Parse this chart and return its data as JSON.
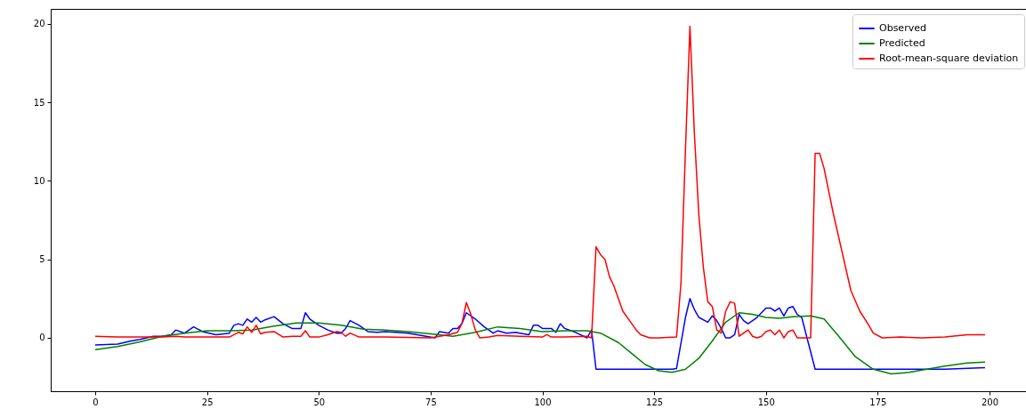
{
  "chart_data": {
    "type": "line",
    "xlim": [
      -9.95,
      208.95
    ],
    "ylim": [
      -3.4,
      20.96
    ],
    "xticks": [
      0,
      25,
      50,
      75,
      100,
      125,
      150,
      175,
      200
    ],
    "yticks": [
      0,
      5,
      10,
      15,
      20
    ],
    "grid": false,
    "legend": "top right",
    "line_style": "solid",
    "series": [
      {
        "name": "Observed",
        "color": "#0000ff",
        "x": [
          0,
          5,
          8,
          10,
          13,
          15,
          17,
          18,
          20,
          22,
          24,
          27,
          30,
          31,
          32,
          33,
          34,
          35,
          36,
          37,
          38,
          40,
          42,
          44,
          46,
          47,
          48,
          50,
          52,
          54,
          55,
          56,
          57,
          59,
          61,
          63,
          65,
          70,
          74,
          76,
          77,
          79,
          80,
          81,
          82,
          83,
          85,
          87,
          89,
          90,
          92,
          94,
          95,
          97,
          98,
          99,
          100,
          102,
          103,
          104,
          105,
          107,
          110,
          111,
          112,
          115,
          120,
          125,
          129,
          130,
          132,
          133,
          134,
          135,
          137,
          138,
          139,
          140,
          141,
          142,
          143,
          144,
          145,
          146,
          148,
          150,
          151,
          152,
          153,
          154,
          155,
          156,
          157,
          158,
          161,
          165,
          170,
          180,
          190,
          199
        ],
        "values": [
          -0.45,
          -0.4,
          -0.2,
          -0.1,
          0.1,
          0.1,
          0.2,
          0.5,
          0.3,
          0.7,
          0.4,
          0.2,
          0.3,
          0.8,
          0.9,
          0.8,
          1.2,
          1.0,
          1.3,
          1.0,
          1.15,
          1.35,
          0.9,
          0.6,
          0.6,
          1.6,
          1.2,
          0.8,
          0.5,
          0.3,
          0.3,
          0.6,
          1.1,
          0.8,
          0.4,
          0.35,
          0.4,
          0.3,
          0.1,
          0.0,
          0.4,
          0.3,
          0.6,
          0.6,
          0.9,
          1.6,
          1.2,
          0.7,
          0.3,
          0.45,
          0.3,
          0.35,
          0.3,
          0.2,
          0.8,
          0.8,
          0.6,
          0.6,
          0.35,
          0.9,
          0.6,
          0.4,
          0.0,
          0.5,
          -2.0,
          -2.0,
          -2.0,
          -2.0,
          -2.0,
          -1.95,
          1.3,
          2.5,
          1.8,
          1.3,
          1.0,
          1.4,
          1.1,
          0.6,
          0.0,
          0.0,
          0.2,
          1.5,
          1.1,
          0.9,
          1.3,
          1.9,
          1.9,
          1.7,
          1.9,
          1.4,
          1.9,
          2.0,
          1.5,
          1.3,
          -2.0,
          -2.0,
          -2.0,
          -2.0,
          -2.0,
          -1.9
        ]
      },
      {
        "name": "Predicted",
        "color": "#008000",
        "x": [
          0,
          5,
          10,
          15,
          20,
          25,
          30,
          35,
          40,
          45,
          50,
          55,
          60,
          65,
          70,
          75,
          80,
          85,
          90,
          95,
          100,
          105,
          110,
          113,
          117,
          120,
          123,
          126,
          129,
          132,
          135,
          138,
          141,
          144,
          147,
          150,
          153,
          156,
          160,
          163,
          166,
          170,
          174,
          178,
          182,
          186,
          190,
          195,
          199
        ],
        "values": [
          -0.75,
          -0.55,
          -0.25,
          0.1,
          0.3,
          0.45,
          0.45,
          0.5,
          0.75,
          0.95,
          0.95,
          0.8,
          0.55,
          0.5,
          0.4,
          0.25,
          0.1,
          0.35,
          0.7,
          0.6,
          0.4,
          0.45,
          0.45,
          0.3,
          -0.3,
          -1.0,
          -1.7,
          -2.1,
          -2.2,
          -2.0,
          -1.3,
          -0.2,
          1.0,
          1.6,
          1.5,
          1.3,
          1.25,
          1.35,
          1.4,
          1.2,
          0.2,
          -1.2,
          -2.0,
          -2.3,
          -2.2,
          -2.0,
          -1.8,
          -1.6,
          -1.55
        ]
      },
      {
        "name": "Root-mean-square deviation",
        "color": "#ff0000",
        "x": [
          0,
          5,
          10,
          15,
          18,
          20,
          25,
          30,
          32,
          33,
          34,
          35,
          36,
          37,
          38,
          40,
          42,
          44,
          46,
          47,
          48,
          50,
          52,
          54,
          55,
          56,
          57,
          59,
          65,
          75,
          79,
          81,
          82,
          83,
          84,
          85,
          86,
          88,
          90,
          95,
          100,
          101,
          102,
          105,
          110,
          111,
          112,
          113,
          114,
          115,
          116,
          118,
          120,
          121,
          122,
          124,
          126,
          130,
          131,
          132,
          133,
          134,
          135,
          136,
          137,
          138,
          139,
          140,
          141,
          142,
          143,
          144,
          145,
          146,
          147,
          148,
          149,
          150,
          151,
          152,
          153,
          154,
          155,
          156,
          157,
          160,
          161,
          162,
          163,
          165,
          167,
          169,
          171,
          173,
          174,
          176,
          180,
          185,
          190,
          195,
          199
        ],
        "values": [
          0.1,
          0.05,
          0.05,
          0.05,
          0.1,
          0.05,
          0.05,
          0.05,
          0.35,
          0.25,
          0.7,
          0.35,
          0.8,
          0.25,
          0.35,
          0.4,
          0.05,
          0.1,
          0.1,
          0.45,
          0.05,
          0.05,
          0.2,
          0.4,
          0.35,
          0.1,
          0.3,
          0.05,
          0.05,
          0.0,
          0.2,
          0.35,
          0.9,
          2.25,
          1.5,
          0.5,
          0.0,
          0.05,
          0.15,
          0.1,
          0.05,
          0.2,
          0.05,
          0.05,
          0.1,
          0.0,
          5.8,
          5.3,
          5.0,
          3.9,
          3.3,
          1.7,
          0.9,
          0.5,
          0.2,
          0.0,
          0.0,
          0.05,
          3.5,
          12,
          19.85,
          13,
          7.8,
          4.5,
          2.3,
          2.0,
          0.5,
          0.3,
          1.7,
          2.3,
          2.2,
          0.1,
          0.3,
          0.5,
          0.1,
          0.0,
          0.1,
          0.4,
          0.5,
          0.2,
          0.5,
          0.0,
          0.4,
          0.5,
          0.0,
          0.0,
          11.75,
          11.75,
          10.8,
          8.0,
          5.5,
          3.0,
          1.7,
          0.8,
          0.3,
          0.0,
          0.05,
          0.0,
          0.05,
          0.2,
          0.2
        ]
      }
    ]
  }
}
